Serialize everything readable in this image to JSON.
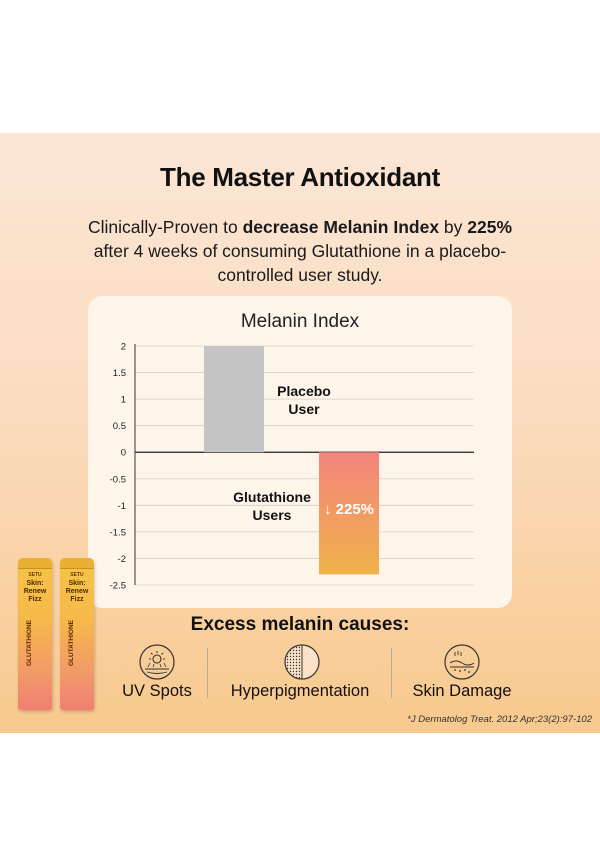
{
  "heading": {
    "title": "The Master Antioxidant",
    "sub_pre": "Clinically-Proven to ",
    "sub_bold": "decrease Melanin Index",
    "sub_mid": " by ",
    "sub_pct": "225%",
    "sub_post": " after 4 weeks of consuming Glutathione in a placebo-controlled user study."
  },
  "chart_data": {
    "type": "bar",
    "title": "Melanin Index",
    "categories": [
      "Placebo User",
      "Glutathione Users"
    ],
    "values": [
      2.0,
      -2.3
    ],
    "colors": [
      "#c4c4c4",
      "#f08a7a"
    ],
    "ylim": [
      -2.5,
      2
    ],
    "yticks": [
      "2",
      "1.5",
      "1",
      "0.5",
      "0",
      "-0.5",
      "-1",
      "-1.5",
      "-2",
      "-2.5"
    ],
    "grid": true,
    "annotation": "225%"
  },
  "causes": {
    "title": "Excess melanin causes:",
    "items": [
      {
        "label": "UV Spots",
        "icon": "sun-skin-icon"
      },
      {
        "label": "Hyperpigmentation",
        "icon": "dotted-circle-icon"
      },
      {
        "label": "Skin Damage",
        "icon": "damaged-skin-icon"
      }
    ]
  },
  "footnote": "*J Dermatolog Treat. 2012 Apr;23(2):97-102",
  "product": {
    "brand": "SETU",
    "name_line1": "Skin:",
    "name_line2": "Renew",
    "name_line3": "Fizz",
    "vertical": "GLUTATHIONE"
  }
}
